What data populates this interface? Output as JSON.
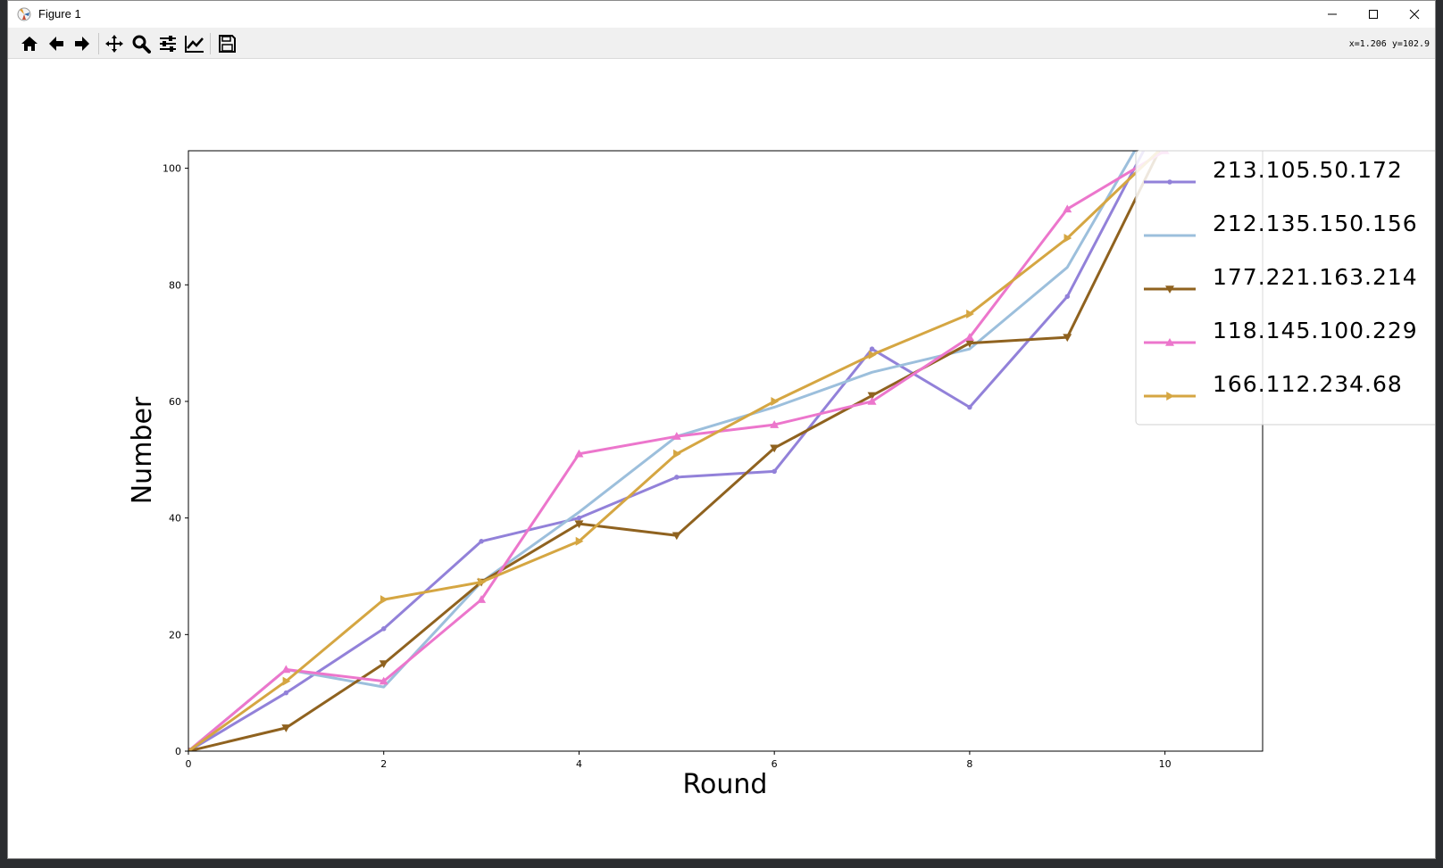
{
  "window": {
    "title": "Figure 1",
    "coords_readout": "x=1.206  y=102.9"
  },
  "toolbar": {
    "buttons": [
      "home-icon",
      "back-icon",
      "forward-icon",
      "pan-icon",
      "zoom-icon",
      "configure-subplots-icon",
      "edit-axis-icon",
      "save-icon"
    ]
  },
  "colors": {
    "series": [
      "#9281d9",
      "#9cbfdc",
      "#8f621f",
      "#ec76cc",
      "#d5a642"
    ]
  },
  "chart_data": {
    "type": "line",
    "title": "",
    "xlabel": "Round",
    "ylabel": "Number",
    "xlim": [
      0,
      11
    ],
    "ylim": [
      0,
      103
    ],
    "xticks": [
      0,
      2,
      4,
      6,
      8,
      10
    ],
    "yticks": [
      0,
      20,
      40,
      60,
      80,
      100
    ],
    "grid": false,
    "legend_position": "upper-right",
    "x": [
      0,
      1,
      2,
      3,
      4,
      5,
      6,
      7,
      8,
      9,
      10
    ],
    "series": [
      {
        "name": "213.105.50.172",
        "marker": "point",
        "color": "#9281d9",
        "values": [
          0,
          10,
          21,
          36,
          40,
          47,
          48,
          69,
          59,
          78,
          110
        ]
      },
      {
        "name": "212.135.150.156",
        "marker": "none",
        "color": "#9cbfdc",
        "values": [
          0,
          14,
          11,
          29,
          41,
          54,
          59,
          65,
          69,
          83,
          112
        ]
      },
      {
        "name": "177.221.163.214",
        "marker": "triangle-down",
        "color": "#8f621f",
        "values": [
          0,
          4,
          15,
          29,
          39,
          37,
          52,
          61,
          70,
          71,
          105
        ]
      },
      {
        "name": "118.145.100.229",
        "marker": "triangle-up",
        "color": "#ec76cc",
        "values": [
          0,
          14,
          12,
          26,
          51,
          54,
          56,
          60,
          71,
          93,
          103
        ]
      },
      {
        "name": "166.112.234.68",
        "marker": "triangle-right",
        "color": "#d5a642",
        "values": [
          0,
          12,
          26,
          29,
          36,
          51,
          60,
          68,
          75,
          88,
          104
        ]
      }
    ]
  }
}
